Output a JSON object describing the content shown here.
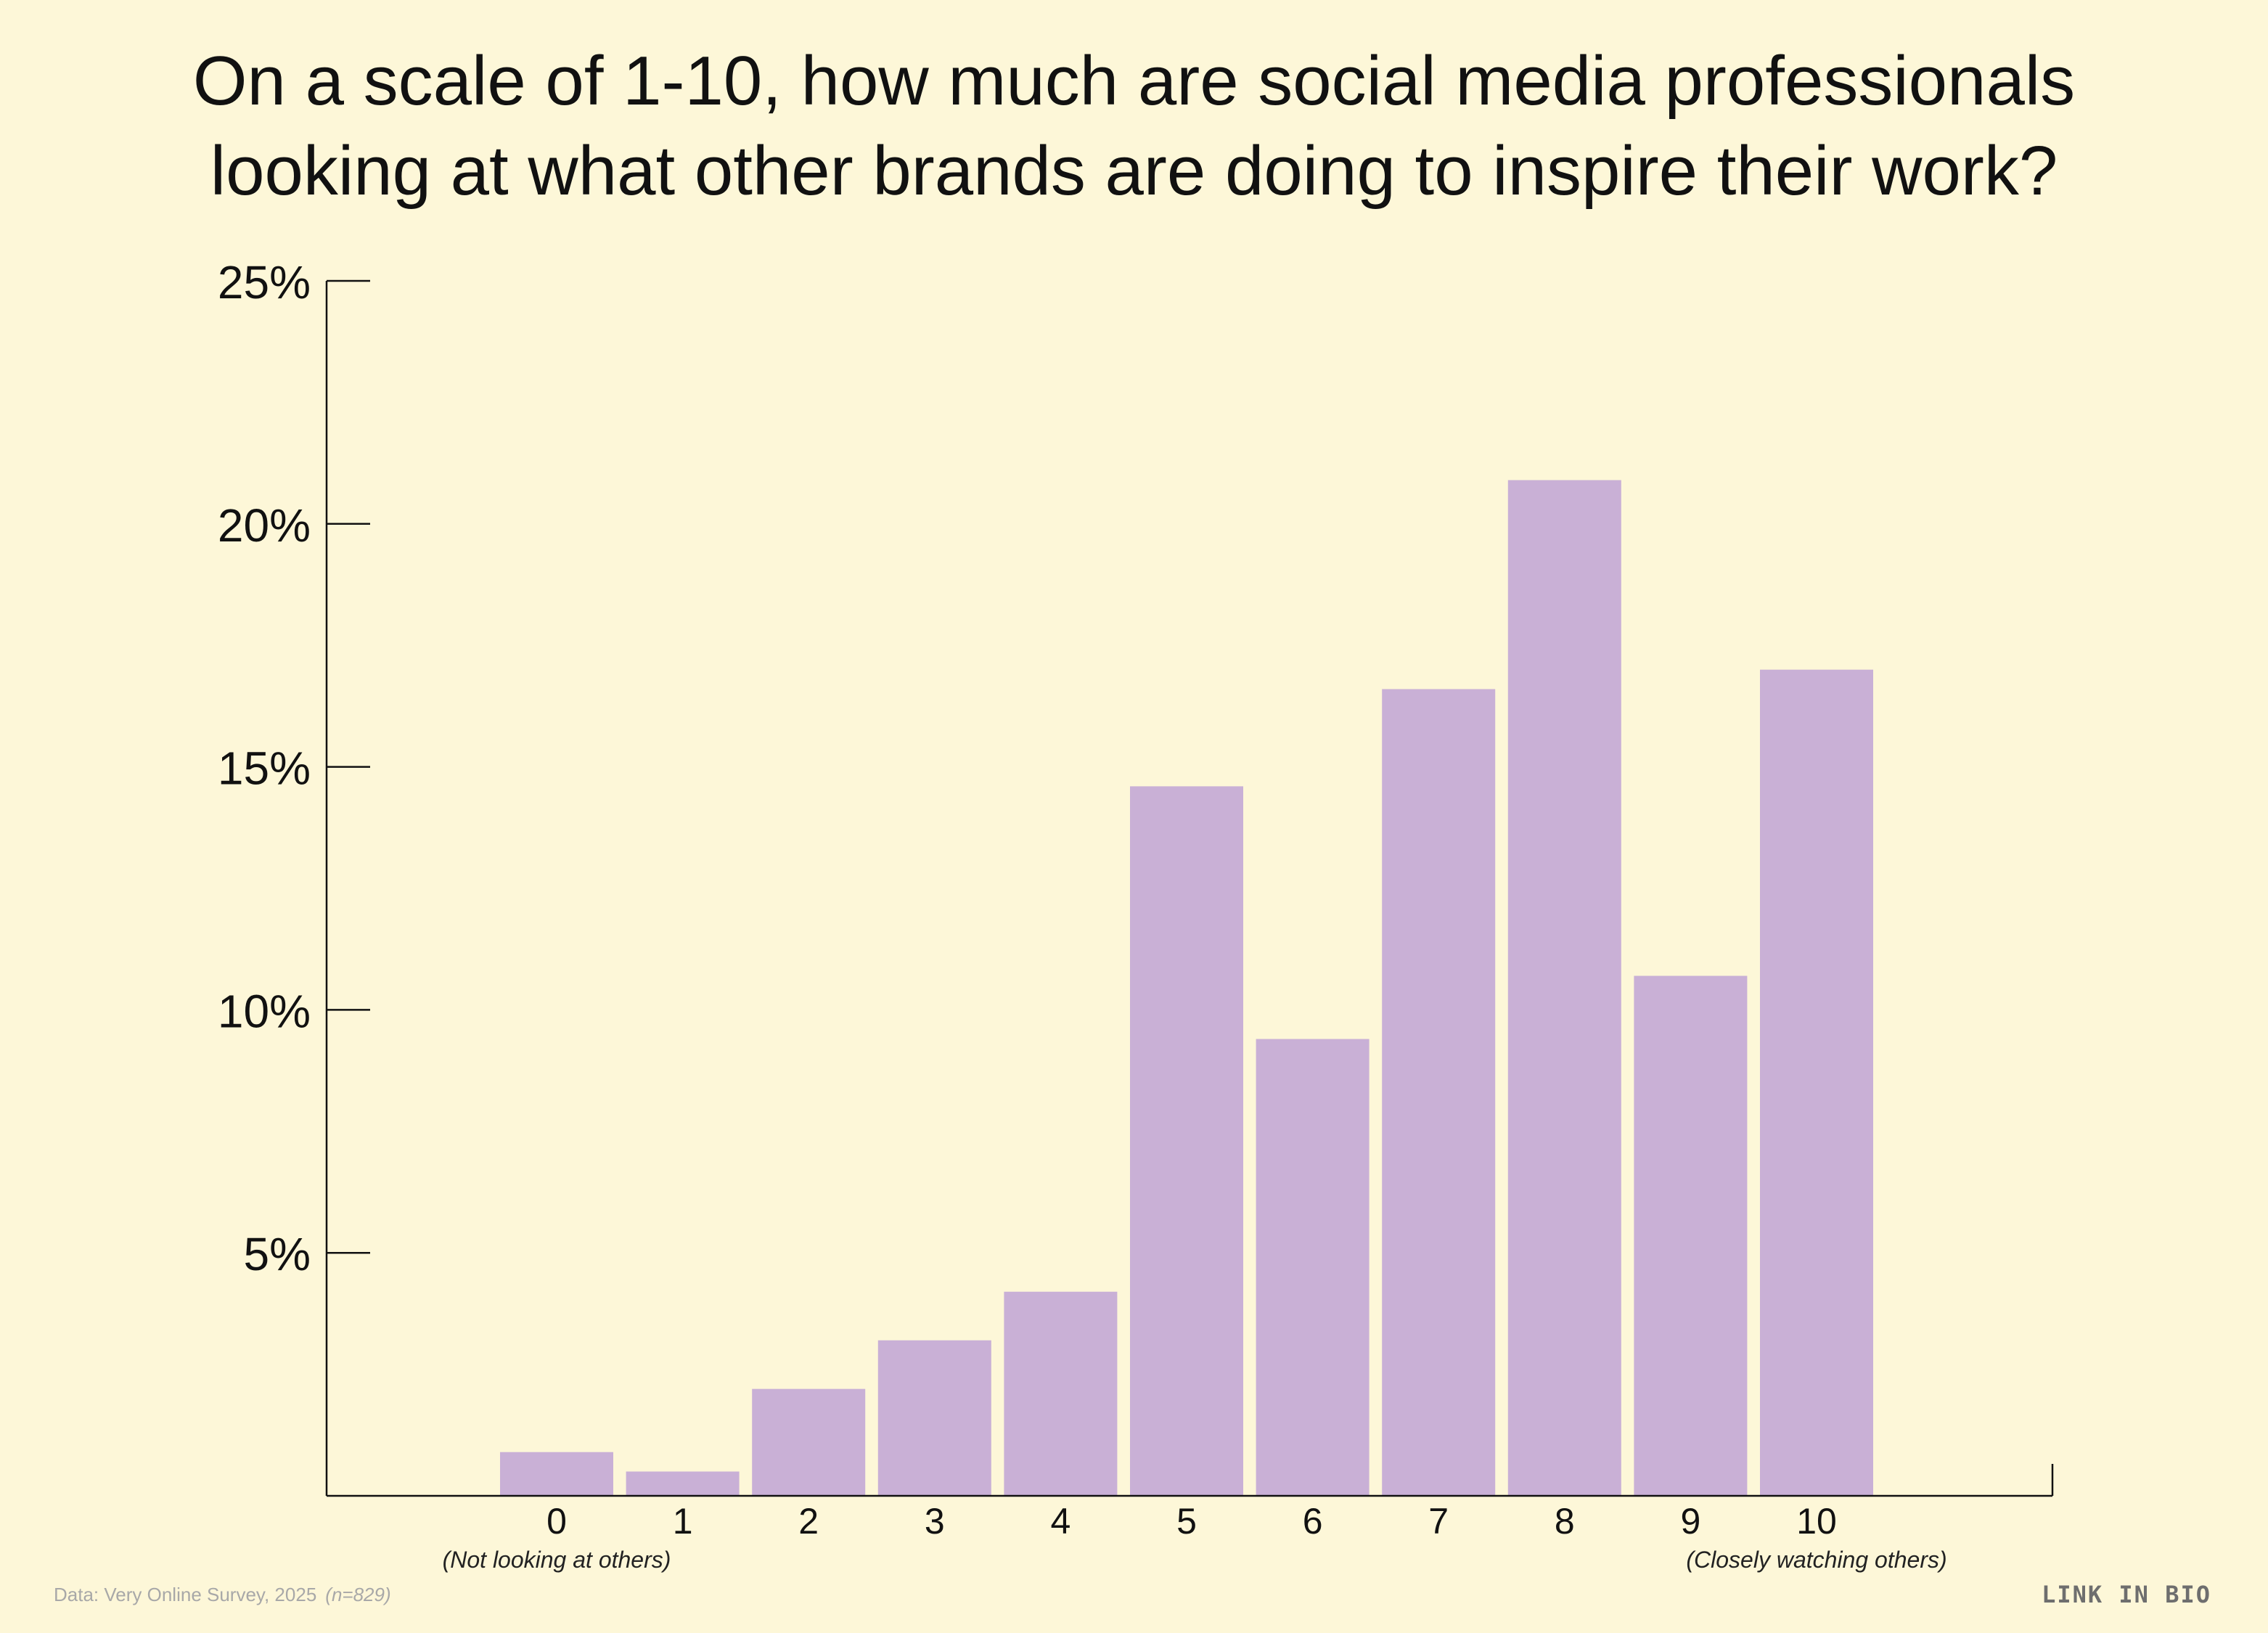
{
  "title_lines": [
    "On a scale of 1-10, how much are social media professionals",
    "looking at what other brands are doing to inspire their work?"
  ],
  "footer": {
    "source": "Data: Very Online Survey, 2025",
    "sample": "(n=829)",
    "brand": "LINK IN BIO"
  },
  "colors": {
    "background": "#fdf7d8",
    "bar": "#c9b0d6",
    "axis": "#111111"
  },
  "chart_data": {
    "type": "bar",
    "title": "On a scale of 1-10, how much are social media professionals looking at what other brands are doing to inspire their work?",
    "categories": [
      "0",
      "1",
      "2",
      "3",
      "4",
      "5",
      "6",
      "7",
      "8",
      "9",
      "10"
    ],
    "values": [
      0.9,
      0.5,
      2.2,
      3.2,
      4.2,
      14.6,
      9.4,
      16.6,
      20.9,
      10.7,
      17.0
    ],
    "y_unit": "%",
    "ylim": [
      0,
      25
    ],
    "yticks": [
      5,
      10,
      15,
      20,
      25
    ],
    "ytick_labels": [
      "5%",
      "10%",
      "15%",
      "20%",
      "25%"
    ],
    "x_end_labels": {
      "left": "(Not looking at others)",
      "right": "(Closely watching others)"
    },
    "xlabel": "",
    "ylabel": "",
    "grid": false,
    "legend": "none"
  }
}
